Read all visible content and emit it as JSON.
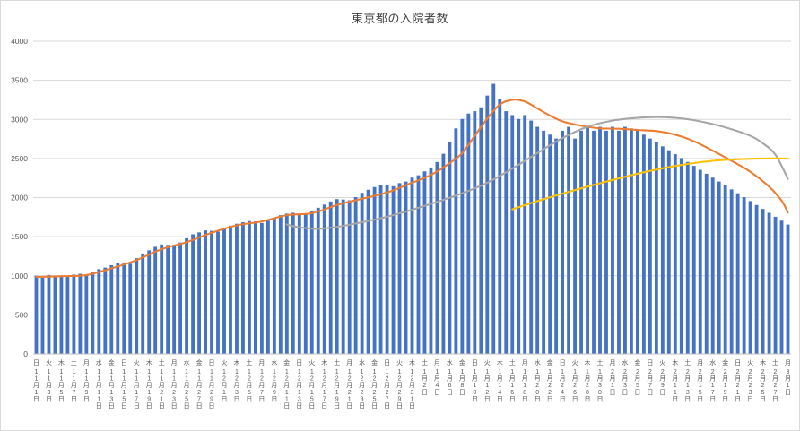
{
  "chart_data": {
    "type": "bar",
    "title": "東京都の入院者数",
    "xlabel": "",
    "ylabel": "",
    "ylim": [
      0,
      4000
    ],
    "yticks": [
      0,
      500,
      1000,
      1500,
      2000,
      2500,
      3000,
      3500,
      4000
    ],
    "grid": true,
    "legend": "none",
    "colors": {
      "bar": "#4472c4",
      "orange_line": "#ed7d31",
      "gray_line": "#a6a6a6",
      "yellow_line": "#ffc000",
      "gridline": "#d9d9d9",
      "axis_line": "#bfbfbf",
      "tick_text": "#595959",
      "title_text": "#404040"
    },
    "x_ticks": [
      {
        "w": "日",
        "d": "11月1日"
      },
      {
        "w": "火",
        "d": "11月3日"
      },
      {
        "w": "木",
        "d": "11月5日"
      },
      {
        "w": "土",
        "d": "11月7日"
      },
      {
        "w": "月",
        "d": "11月9日"
      },
      {
        "w": "水",
        "d": "11月11日"
      },
      {
        "w": "金",
        "d": "11月13日"
      },
      {
        "w": "日",
        "d": "11月15日"
      },
      {
        "w": "火",
        "d": "11月17日"
      },
      {
        "w": "木",
        "d": "11月19日"
      },
      {
        "w": "土",
        "d": "11月21日"
      },
      {
        "w": "月",
        "d": "11月23日"
      },
      {
        "w": "水",
        "d": "11月25日"
      },
      {
        "w": "金",
        "d": "11月27日"
      },
      {
        "w": "日",
        "d": "11月29日"
      },
      {
        "w": "火",
        "d": "12月1日"
      },
      {
        "w": "木",
        "d": "12月3日"
      },
      {
        "w": "土",
        "d": "12月5日"
      },
      {
        "w": "月",
        "d": "12月7日"
      },
      {
        "w": "水",
        "d": "12月9日"
      },
      {
        "w": "金",
        "d": "12月11日"
      },
      {
        "w": "日",
        "d": "12月13日"
      },
      {
        "w": "火",
        "d": "12月15日"
      },
      {
        "w": "木",
        "d": "12月17日"
      },
      {
        "w": "土",
        "d": "12月19日"
      },
      {
        "w": "月",
        "d": "12月21日"
      },
      {
        "w": "水",
        "d": "12月23日"
      },
      {
        "w": "金",
        "d": "12月25日"
      },
      {
        "w": "日",
        "d": "12月27日"
      },
      {
        "w": "火",
        "d": "12月29日"
      },
      {
        "w": "木",
        "d": "12月31日"
      },
      {
        "w": "土",
        "d": "1月2日"
      },
      {
        "w": "月",
        "d": "1月4日"
      },
      {
        "w": "水",
        "d": "1月6日"
      },
      {
        "w": "金",
        "d": "1月8日"
      },
      {
        "w": "日",
        "d": "1月10日"
      },
      {
        "w": "火",
        "d": "1月12日"
      },
      {
        "w": "木",
        "d": "1月14日"
      },
      {
        "w": "土",
        "d": "1月16日"
      },
      {
        "w": "月",
        "d": "1月18日"
      },
      {
        "w": "水",
        "d": "1月20日"
      },
      {
        "w": "金",
        "d": "1月22日"
      },
      {
        "w": "日",
        "d": "1月24日"
      },
      {
        "w": "火",
        "d": "1月26日"
      },
      {
        "w": "木",
        "d": "1月28日"
      },
      {
        "w": "土",
        "d": "1月30日"
      },
      {
        "w": "月",
        "d": "2月1日"
      },
      {
        "w": "水",
        "d": "2月3日"
      },
      {
        "w": "金",
        "d": "2月5日"
      },
      {
        "w": "日",
        "d": "2月7日"
      },
      {
        "w": "火",
        "d": "2月9日"
      },
      {
        "w": "木",
        "d": "2月11日"
      },
      {
        "w": "土",
        "d": "2月13日"
      },
      {
        "w": "月",
        "d": "2月15日"
      },
      {
        "w": "水",
        "d": "2月17日"
      },
      {
        "w": "金",
        "d": "2月19日"
      },
      {
        "w": "日",
        "d": "2月21日"
      },
      {
        "w": "火",
        "d": "2月23日"
      },
      {
        "w": "木",
        "d": "2月25日"
      },
      {
        "w": "土",
        "d": "2月27日"
      },
      {
        "w": "月",
        "d": "3月1日"
      }
    ],
    "bars": {
      "name": "daily-hospitalized-count",
      "values": [
        1000,
        975,
        1010,
        990,
        1000,
        985,
        1015,
        1025,
        1005,
        1045,
        1085,
        1105,
        1135,
        1160,
        1170,
        1155,
        1225,
        1285,
        1325,
        1370,
        1400,
        1395,
        1385,
        1425,
        1480,
        1530,
        1555,
        1580,
        1575,
        1565,
        1605,
        1640,
        1665,
        1685,
        1700,
        1695,
        1675,
        1705,
        1745,
        1775,
        1795,
        1805,
        1795,
        1785,
        1825,
        1870,
        1910,
        1950,
        1980,
        1975,
        1965,
        2005,
        2060,
        2100,
        2135,
        2160,
        2155,
        2145,
        2185,
        2205,
        2255,
        2285,
        2335,
        2385,
        2455,
        2560,
        2705,
        2885,
        3005,
        3075,
        3105,
        3155,
        3305,
        3455,
        3255,
        3105,
        3055,
        3005,
        3055,
        2985,
        2905,
        2855,
        2805,
        2755,
        2855,
        2905,
        2755,
        2855,
        2905,
        2855,
        2905,
        2855,
        2905,
        2855,
        2905,
        2885,
        2855,
        2805,
        2755,
        2705,
        2655,
        2605,
        2555,
        2505,
        2455,
        2405,
        2355,
        2305,
        2255,
        2205,
        2155,
        2105,
        2055,
        2005,
        1955,
        1905,
        1855,
        1805,
        1755,
        1705,
        1655
      ]
    },
    "lines": [
      {
        "name": "orange-trend-line",
        "color_key": "orange_line",
        "anchors": [
          [
            0,
            985
          ],
          [
            4,
            995
          ],
          [
            8,
            1010
          ],
          [
            12,
            1095
          ],
          [
            16,
            1200
          ],
          [
            20,
            1340
          ],
          [
            24,
            1430
          ],
          [
            28,
            1550
          ],
          [
            32,
            1645
          ],
          [
            36,
            1695
          ],
          [
            40,
            1775
          ],
          [
            44,
            1800
          ],
          [
            48,
            1905
          ],
          [
            52,
            1985
          ],
          [
            56,
            2065
          ],
          [
            60,
            2190
          ],
          [
            63,
            2290
          ],
          [
            66,
            2440
          ],
          [
            68,
            2570
          ],
          [
            70,
            2790
          ],
          [
            72,
            3010
          ],
          [
            74,
            3190
          ],
          [
            76,
            3250
          ],
          [
            78,
            3230
          ],
          [
            80,
            3140
          ],
          [
            82,
            3050
          ],
          [
            84,
            2975
          ],
          [
            86,
            2935
          ],
          [
            88,
            2905
          ],
          [
            90,
            2885
          ],
          [
            93,
            2880
          ],
          [
            96,
            2865
          ],
          [
            99,
            2850
          ],
          [
            102,
            2805
          ],
          [
            105,
            2720
          ],
          [
            108,
            2600
          ],
          [
            111,
            2470
          ],
          [
            114,
            2330
          ],
          [
            117,
            2140
          ],
          [
            119,
            1960
          ],
          [
            120,
            1810
          ]
        ]
      },
      {
        "name": "gray-trend-line",
        "color_key": "gray_line",
        "anchors": [
          [
            40,
            1655
          ],
          [
            42,
            1620
          ],
          [
            45,
            1600
          ],
          [
            48,
            1625
          ],
          [
            52,
            1685
          ],
          [
            56,
            1755
          ],
          [
            60,
            1845
          ],
          [
            64,
            1945
          ],
          [
            68,
            2055
          ],
          [
            72,
            2190
          ],
          [
            76,
            2370
          ],
          [
            80,
            2570
          ],
          [
            84,
            2760
          ],
          [
            88,
            2905
          ],
          [
            92,
            2985
          ],
          [
            96,
            3020
          ],
          [
            99,
            3030
          ],
          [
            102,
            3020
          ],
          [
            105,
            2990
          ],
          [
            108,
            2940
          ],
          [
            111,
            2875
          ],
          [
            114,
            2790
          ],
          [
            116,
            2695
          ],
          [
            118,
            2550
          ],
          [
            120,
            2240
          ]
        ]
      },
      {
        "name": "yellow-trend-line",
        "color_key": "yellow_line",
        "anchors": [
          [
            76,
            1850
          ],
          [
            80,
            1955
          ],
          [
            84,
            2050
          ],
          [
            88,
            2140
          ],
          [
            92,
            2225
          ],
          [
            96,
            2305
          ],
          [
            100,
            2375
          ],
          [
            104,
            2430
          ],
          [
            108,
            2470
          ],
          [
            112,
            2490
          ],
          [
            116,
            2500
          ],
          [
            120,
            2500
          ]
        ]
      }
    ]
  }
}
